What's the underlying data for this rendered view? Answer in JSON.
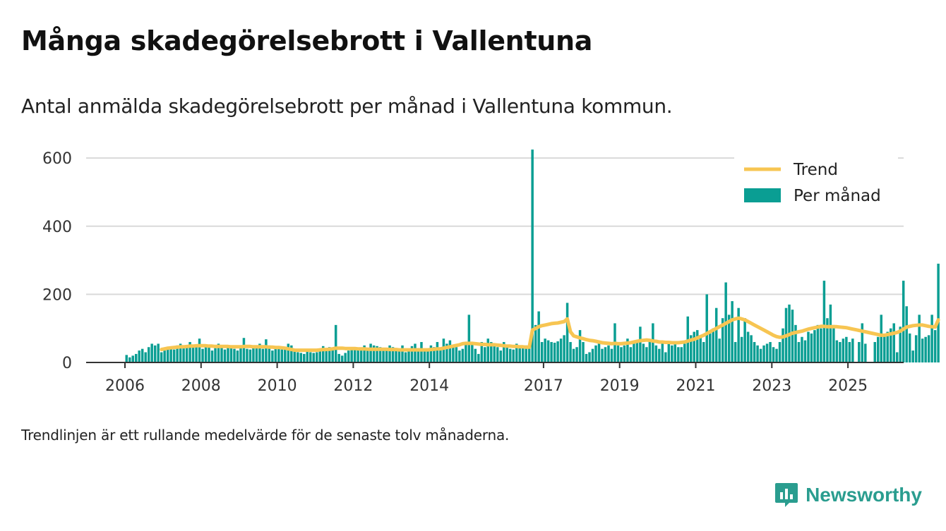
{
  "header": {
    "title": "Många skadegörelsebrott i Vallentuna",
    "subtitle": "Antal anmälda skadegörelsebrott per månad i Vallentuna kommun."
  },
  "footer": {
    "note": "Trendlinjen är ett rullande medelvärde för de senaste tolv månaderna.",
    "brand": "Newsworthy"
  },
  "colors": {
    "bars": "#0a9e93",
    "trend": "#f7c552",
    "grid": "#d9d9d9",
    "axis": "#333333",
    "brand": "#2a9d8f"
  },
  "chart_data": {
    "type": "bar",
    "title": "",
    "xlabel": "",
    "ylabel": "",
    "ylim": [
      0,
      650
    ],
    "yticks": [
      0,
      200,
      400,
      600
    ],
    "xticks": [
      {
        "label": "2006",
        "year": 2006
      },
      {
        "label": "2008",
        "year": 2008
      },
      {
        "label": "2010",
        "year": 2010
      },
      {
        "label": "2012",
        "year": 2012
      },
      {
        "label": "2014",
        "year": 2014
      },
      {
        "label": "2017",
        "year": 2017
      },
      {
        "label": "2019",
        "year": 2019
      },
      {
        "label": "2021",
        "year": 2021
      },
      {
        "label": "2023",
        "year": 2023
      },
      {
        "label": "2025",
        "year": 2025
      }
    ],
    "legend": {
      "position": "top-right",
      "entries": [
        {
          "label": "Trend",
          "kind": "line"
        },
        {
          "label": "Per månad",
          "kind": "bar"
        }
      ]
    },
    "grid": true,
    "start": "2006-01",
    "series": [
      {
        "name": "Per månad",
        "values": [
          22,
          15,
          20,
          25,
          35,
          40,
          30,
          45,
          55,
          50,
          55,
          30,
          35,
          40,
          45,
          38,
          50,
          55,
          42,
          48,
          60,
          52,
          45,
          70,
          40,
          45,
          50,
          35,
          42,
          55,
          50,
          38,
          48,
          45,
          40,
          35,
          45,
          72,
          40,
          38,
          45,
          50,
          55,
          40,
          68,
          50,
          35,
          42,
          40,
          38,
          45,
          55,
          50,
          35,
          30,
          28,
          25,
          35,
          30,
          28,
          30,
          35,
          48,
          40,
          45,
          42,
          110,
          25,
          20,
          28,
          35,
          40,
          45,
          38,
          42,
          50,
          38,
          55,
          50,
          48,
          45,
          35,
          40,
          50,
          45,
          38,
          35,
          50,
          30,
          40,
          48,
          55,
          42,
          60,
          35,
          40,
          50,
          45,
          60,
          38,
          70,
          55,
          65,
          50,
          45,
          35,
          40,
          55,
          140,
          55,
          40,
          25,
          60,
          45,
          70,
          60,
          50,
          45,
          35,
          60,
          45,
          40,
          38,
          55,
          50,
          45,
          50,
          45,
          625,
          110,
          150,
          60,
          70,
          65,
          60,
          58,
          62,
          70,
          80,
          175,
          60,
          40,
          45,
          95,
          60,
          25,
          30,
          40,
          50,
          55,
          40,
          45,
          50,
          40,
          115,
          50,
          45,
          50,
          70,
          45,
          55,
          60,
          105,
          55,
          45,
          60,
          115,
          50,
          40,
          55,
          30,
          60,
          50,
          55,
          45,
          45,
          55,
          135,
          80,
          90,
          95,
          80,
          60,
          200,
          85,
          100,
          160,
          70,
          130,
          235,
          140,
          180,
          60,
          160,
          75,
          130,
          90,
          80,
          60,
          50,
          40,
          50,
          55,
          60,
          45,
          40,
          60,
          100,
          160,
          170,
          155,
          110,
          60,
          75,
          65,
          90,
          85,
          95,
          110,
          100,
          240,
          130,
          170,
          110,
          65,
          60,
          70,
          75,
          60,
          70,
          0,
          60,
          115,
          55,
          0,
          0,
          60,
          75,
          140,
          80,
          90,
          100,
          115,
          30,
          105,
          240,
          165,
          85,
          35,
          80,
          140,
          70,
          75,
          80,
          140,
          95,
          290
        ]
      },
      {
        "name": "Trend",
        "values": [
          null,
          null,
          null,
          null,
          null,
          null,
          null,
          null,
          null,
          null,
          null,
          38,
          40,
          42,
          43,
          44,
          45,
          46,
          46,
          47,
          48,
          48,
          49,
          49,
          49,
          49,
          48,
          48,
          47,
          47,
          47,
          47,
          47,
          46,
          46,
          46,
          46,
          47,
          47,
          47,
          46,
          46,
          46,
          46,
          46,
          45,
          45,
          44,
          44,
          43,
          42,
          40,
          38,
          36,
          36,
          36,
          36,
          36,
          36,
          36,
          36,
          37,
          38,
          38,
          39,
          40,
          42,
          42,
          42,
          41,
          41,
          41,
          41,
          40,
          40,
          40,
          39,
          39,
          39,
          39,
          39,
          39,
          39,
          38,
          38,
          38,
          37,
          37,
          37,
          37,
          37,
          37,
          37,
          37,
          37,
          37,
          38,
          39,
          40,
          40,
          42,
          44,
          46,
          48,
          50,
          52,
          55,
          56,
          56,
          56,
          55,
          54,
          53,
          53,
          52,
          52,
          52,
          51,
          50,
          49,
          48,
          48,
          47,
          47,
          46,
          46,
          45,
          45,
          95,
          100,
          105,
          108,
          110,
          112,
          114,
          115,
          116,
          118,
          120,
          128,
          90,
          78,
          75,
          72,
          70,
          67,
          65,
          64,
          62,
          60,
          58,
          57,
          56,
          55,
          56,
          55,
          55,
          56,
          57,
          58,
          60,
          62,
          64,
          65,
          66,
          65,
          63,
          62,
          60,
          60,
          59,
          59,
          58,
          58,
          58,
          59,
          60,
          63,
          66,
          68,
          72,
          76,
          80,
          85,
          90,
          95,
          100,
          105,
          110,
          115,
          120,
          125,
          128,
          130,
          128,
          125,
          120,
          115,
          110,
          105,
          100,
          95,
          90,
          85,
          80,
          76,
          74,
          75,
          78,
          82,
          86,
          88,
          90,
          92,
          95,
          98,
          100,
          102,
          104,
          106,
          106,
          105,
          105,
          105,
          105,
          104,
          103,
          102,
          100,
          98,
          96,
          94,
          92,
          90,
          88,
          86,
          84,
          82,
          80,
          80,
          82,
          84,
          86,
          88,
          92,
          98,
          104,
          106,
          108,
          109,
          110,
          110,
          108,
          106,
          105,
          104,
          125
        ]
      }
    ]
  }
}
